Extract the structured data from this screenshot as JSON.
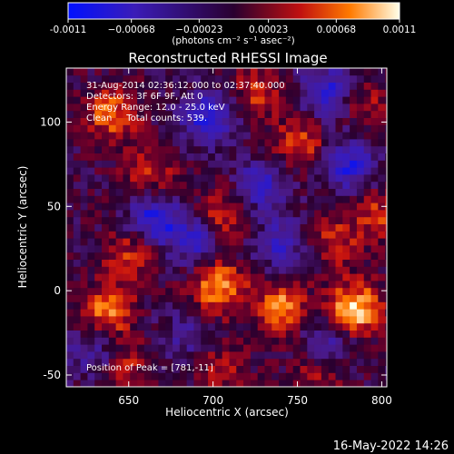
{
  "chart_data": {
    "type": "heatmap",
    "title": "Reconstructed RHESSI Image",
    "xlabel": "Heliocentric X (arcsec)",
    "ylabel": "Heliocentric Y (arcsec)",
    "xlim": [
      613,
      803
    ],
    "ylim": [
      -57,
      132
    ],
    "x_ticks": [
      650,
      700,
      750,
      800
    ],
    "y_ticks": [
      -50,
      0,
      50,
      100
    ],
    "colorbar": {
      "range": [
        -0.0011,
        0.0011
      ],
      "tick_values": [
        -0.0011,
        -0.00068,
        -0.00023,
        0.00023,
        0.00068,
        0.0011
      ],
      "tick_labels": [
        "-0.0011",
        "−0.00068",
        "−0.00023",
        "0.00023",
        "0.00068",
        "0.0011"
      ],
      "units": "(photons cm⁻² s⁻¹ asec⁻²)"
    },
    "annotations": [
      "31-Aug-2014 02:36:12.000 to 02:37:40.000",
      "Detectors: 3F 6F 9F, Att 0",
      "Energy Range: 12.0 - 25.0 keV",
      "Clean     Total counts: 539."
    ],
    "peak_label": "Position of Peak = [781,-11]",
    "peak": [
      781,
      -11
    ],
    "hotspots": [
      {
        "x": 784,
        "y": -11,
        "value": 0.0011
      },
      {
        "x": 703,
        "y": 3,
        "value": 0.0009
      },
      {
        "x": 637,
        "y": -12,
        "value": 0.0008
      },
      {
        "x": 740,
        "y": -10,
        "value": 0.0008
      },
      {
        "x": 640,
        "y": 105,
        "value": 0.0007
      },
      {
        "x": 706,
        "y": 45,
        "value": 0.0006
      },
      {
        "x": 652,
        "y": 22,
        "value": 0.0006
      },
      {
        "x": 752,
        "y": 88,
        "value": 0.0006
      },
      {
        "x": 772,
        "y": 30,
        "value": 0.0005
      },
      {
        "x": 662,
        "y": 70,
        "value": 0.0005
      },
      {
        "x": 798,
        "y": 45,
        "value": 0.0005
      },
      {
        "x": 726,
        "y": 118,
        "value": 0.0005
      },
      {
        "x": 650,
        "y": -45,
        "value": 0.0004
      },
      {
        "x": 763,
        "y": -48,
        "value": 0.0004
      },
      {
        "x": 705,
        "y": -45,
        "value": 0.0004
      },
      {
        "x": 790,
        "y": 110,
        "value": 0.0004
      }
    ],
    "coldspots": [
      {
        "x": 665,
        "y": 42,
        "value": -0.0009
      },
      {
        "x": 698,
        "y": 102,
        "value": -0.0009
      },
      {
        "x": 767,
        "y": 118,
        "value": -0.0008
      },
      {
        "x": 780,
        "y": 75,
        "value": -0.0008
      },
      {
        "x": 728,
        "y": 62,
        "value": -0.0007
      },
      {
        "x": 690,
        "y": 30,
        "value": -0.0007
      },
      {
        "x": 740,
        "y": 28,
        "value": -0.0006
      },
      {
        "x": 768,
        "y": -30,
        "value": -0.0006
      },
      {
        "x": 628,
        "y": -35,
        "value": -0.0005
      },
      {
        "x": 683,
        "y": -28,
        "value": -0.0004
      }
    ]
  },
  "footer": {
    "timestamp": "16-May-2022 14:26"
  }
}
